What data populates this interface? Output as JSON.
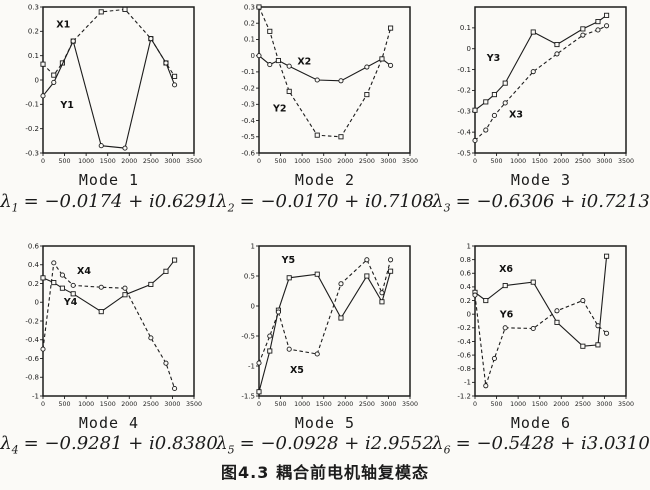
{
  "page": {
    "caption": "图4.3 耦合前电机轴复模态",
    "ink": "#1c1c1c",
    "paper": "#fbfaf7"
  },
  "chart_data": [
    {
      "type": "line",
      "mode_label": "Mode 1",
      "lambda": {
        "sym": "λ",
        "sub": "1",
        "eq": "= −0.0174 + i0.6291"
      },
      "xlim": [
        0,
        3500
      ],
      "xticks": [
        "0",
        "500",
        "1000",
        "1500",
        "2000",
        "2500",
        "3000",
        "3500"
      ],
      "ylim": [
        -0.3,
        0.3
      ],
      "yticks": [
        "0.3",
        "0.2",
        "0.1",
        "0",
        "-0.1",
        "-0.2",
        "-0.3"
      ],
      "grid": false,
      "legend": "in-plot series labels",
      "series": [
        {
          "name": "X1",
          "marker": "square",
          "dash": true,
          "x": [
            0,
            250,
            450,
            700,
            1350,
            1900,
            2500,
            2850,
            3050
          ],
          "y": [
            0.065,
            0.02,
            0.07,
            0.16,
            0.28,
            0.29,
            0.17,
            0.07,
            0.015
          ],
          "label": {
            "text": "X1",
            "x": 470,
            "y": 0.215
          }
        },
        {
          "name": "Y1",
          "marker": "circle",
          "dash": false,
          "x": [
            0,
            250,
            700,
            1350,
            1900,
            2500,
            2850,
            3050
          ],
          "y": [
            -0.065,
            -0.01,
            0.16,
            -0.27,
            -0.28,
            0.17,
            0.07,
            -0.02
          ],
          "label": {
            "text": "Y1",
            "x": 560,
            "y": -0.115
          }
        }
      ]
    },
    {
      "type": "line",
      "mode_label": "Mode 2",
      "lambda": {
        "sym": "λ",
        "sub": "2",
        "eq": "= −0.0170 + i0.7108"
      },
      "xlim": [
        0,
        3500
      ],
      "xticks": [
        "0",
        "500",
        "1000",
        "1500",
        "2000",
        "2500",
        "3000",
        "3500"
      ],
      "ylim": [
        -0.6,
        0.3
      ],
      "yticks": [
        "0.3",
        "0.2",
        "0.1",
        "0",
        "-0.1",
        "-0.2",
        "-0.3",
        "-0.4",
        "-0.5",
        "-0.6"
      ],
      "grid": false,
      "legend": "in-plot series labels",
      "series": [
        {
          "name": "X2",
          "marker": "circle",
          "dash": false,
          "x": [
            0,
            250,
            450,
            700,
            1350,
            1900,
            2500,
            2850,
            3050
          ],
          "y": [
            0.0,
            -0.055,
            -0.03,
            -0.065,
            -0.15,
            -0.155,
            -0.07,
            -0.02,
            -0.06
          ],
          "label": {
            "text": "X2",
            "x": 1050,
            "y": -0.055
          }
        },
        {
          "name": "Y2",
          "marker": "square",
          "dash": true,
          "x": [
            0,
            250,
            450,
            700,
            1350,
            1900,
            2500,
            2850,
            3050
          ],
          "y": [
            0.3,
            0.15,
            -0.03,
            -0.22,
            -0.49,
            -0.5,
            -0.24,
            -0.02,
            0.17
          ],
          "label": {
            "text": "Y2",
            "x": 480,
            "y": -0.345
          }
        }
      ]
    },
    {
      "type": "line",
      "mode_label": "Mode 3",
      "lambda": {
        "sym": "λ",
        "sub": "3",
        "eq": "= −0.6306 + i0.7213"
      },
      "xlim": [
        0,
        3500
      ],
      "xticks": [
        "0",
        "500",
        "1000",
        "1500",
        "2000",
        "2500",
        "3000",
        "3500"
      ],
      "ylim": [
        -0.5,
        0.2
      ],
      "yticks": [
        "0.1",
        "0",
        "-0.1",
        "-0.2",
        "-0.3",
        "-0.4",
        "-0.5"
      ],
      "grid": false,
      "legend": "in-plot series labels",
      "series": [
        {
          "name": "Y3",
          "marker": "square",
          "dash": false,
          "x": [
            0,
            250,
            450,
            700,
            1350,
            1900,
            2500,
            2850,
            3050
          ],
          "y": [
            -0.295,
            -0.255,
            -0.22,
            -0.165,
            0.08,
            0.02,
            0.095,
            0.13,
            0.16
          ],
          "label": {
            "text": "Y3",
            "x": 430,
            "y": -0.06
          }
        },
        {
          "name": "X3",
          "marker": "circle",
          "dash": true,
          "x": [
            0,
            250,
            450,
            700,
            1350,
            1900,
            2500,
            2850,
            3050
          ],
          "y": [
            -0.44,
            -0.39,
            -0.32,
            -0.26,
            -0.11,
            -0.025,
            0.065,
            0.09,
            0.11
          ],
          "label": {
            "text": "X3",
            "x": 950,
            "y": -0.33
          }
        }
      ]
    },
    {
      "type": "line",
      "mode_label": "Mode 4",
      "lambda": {
        "sym": "λ",
        "sub": "4",
        "eq": "= −0.9281 + i0.8380"
      },
      "xlim": [
        0,
        3500
      ],
      "xticks": [
        "0",
        "500",
        "1000",
        "1500",
        "2000",
        "2500",
        "3000",
        "3500"
      ],
      "ylim": [
        -1,
        0.6
      ],
      "yticks": [
        "0.6",
        "0.4",
        "0.2",
        "0",
        "-0.2",
        "-0.4",
        "-0.6",
        "-0.8",
        "-1"
      ],
      "grid": false,
      "legend": "in-plot series labels",
      "series": [
        {
          "name": "X4",
          "marker": "circle",
          "dash": true,
          "x": [
            0,
            250,
            450,
            700,
            1350,
            1900,
            2500,
            2850,
            3050
          ],
          "y": [
            -0.5,
            0.42,
            0.29,
            0.18,
            0.16,
            0.15,
            -0.38,
            -0.65,
            -0.92
          ],
          "label": {
            "text": "X4",
            "x": 950,
            "y": 0.3
          }
        },
        {
          "name": "Y4",
          "marker": "square",
          "dash": false,
          "x": [
            0,
            250,
            450,
            700,
            1350,
            1900,
            2500,
            2850,
            3050
          ],
          "y": [
            0.26,
            0.21,
            0.15,
            0.09,
            -0.1,
            0.08,
            0.19,
            0.33,
            0.45
          ],
          "label": {
            "text": "Y4",
            "x": 640,
            "y": -0.03
          }
        }
      ]
    },
    {
      "type": "line",
      "mode_label": "Mode 5",
      "lambda": {
        "sym": "λ",
        "sub": "5",
        "eq": "= −0.0928 + i2.9552"
      },
      "xlim": [
        0,
        3500
      ],
      "xticks": [
        "0",
        "500",
        "1000",
        "1500",
        "2000",
        "2500",
        "3000",
        "3500"
      ],
      "ylim": [
        -1.5,
        1
      ],
      "yticks": [
        "1",
        "0.5",
        "0",
        "-0.5",
        "-1",
        "-1.5"
      ],
      "grid": false,
      "legend": "in-plot series labels",
      "series": [
        {
          "name": "Y5",
          "marker": "square",
          "dash": false,
          "x": [
            0,
            250,
            450,
            700,
            1350,
            1900,
            2500,
            2850,
            3050
          ],
          "y": [
            -1.43,
            -0.75,
            -0.07,
            0.47,
            0.53,
            -0.2,
            0.5,
            0.07,
            0.58
          ],
          "label": {
            "text": "Y5",
            "x": 680,
            "y": 0.72
          }
        },
        {
          "name": "X5",
          "marker": "circle",
          "dash": true,
          "x": [
            0,
            250,
            450,
            700,
            1350,
            1900,
            2500,
            2850,
            3050
          ],
          "y": [
            -0.95,
            -0.5,
            -0.1,
            -0.72,
            -0.8,
            0.37,
            0.77,
            0.22,
            0.77
          ],
          "label": {
            "text": "X5",
            "x": 880,
            "y": -1.12
          }
        }
      ]
    },
    {
      "type": "line",
      "mode_label": "Mode 6",
      "lambda": {
        "sym": "λ",
        "sub": "6",
        "eq": "= −0.5428 + i3.0310"
      },
      "xlim": [
        0,
        3500
      ],
      "xticks": [
        "0",
        "500",
        "1000",
        "1500",
        "2000",
        "2500",
        "3000",
        "3500"
      ],
      "ylim": [
        -1.2,
        1
      ],
      "yticks": [
        "1",
        "0.8",
        "0.6",
        "0.4",
        "0.2",
        "0",
        "-0.2",
        "-0.4",
        "-0.6",
        "-0.8",
        "-1",
        "-1.2"
      ],
      "grid": false,
      "legend": "in-plot series labels",
      "series": [
        {
          "name": "X6",
          "marker": "square",
          "dash": false,
          "x": [
            0,
            250,
            700,
            1350,
            1900,
            2500,
            2850,
            3050
          ],
          "y": [
            0.32,
            0.2,
            0.42,
            0.47,
            -0.12,
            -0.47,
            -0.45,
            0.85
          ],
          "label": {
            "text": "X6",
            "x": 720,
            "y": 0.62
          }
        },
        {
          "name": "Y6",
          "marker": "circle",
          "dash": true,
          "x": [
            0,
            250,
            450,
            700,
            1350,
            1900,
            2500,
            2850,
            3050
          ],
          "y": [
            0.28,
            -1.05,
            -0.65,
            -0.2,
            -0.21,
            0.05,
            0.2,
            -0.17,
            -0.28
          ],
          "label": {
            "text": "Y6",
            "x": 730,
            "y": -0.05
          }
        }
      ]
    }
  ]
}
